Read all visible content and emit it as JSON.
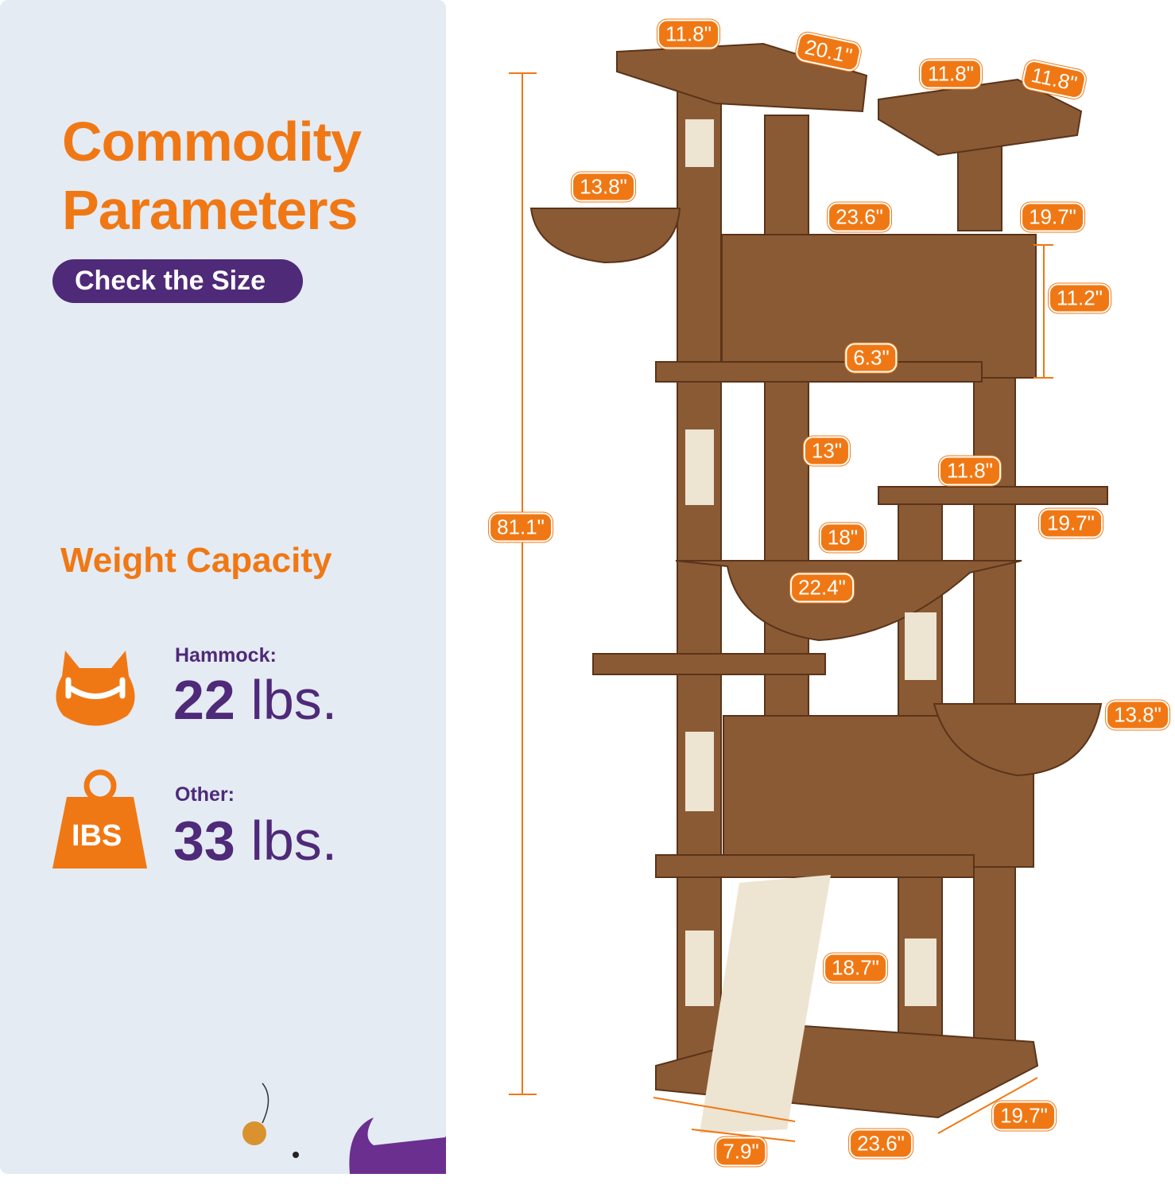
{
  "panel": {
    "title_line1": "Commodity",
    "title_line2": "Parameters",
    "subtitle_button": "Check the Size",
    "weight_heading": "Weight Capacity",
    "hammock": {
      "label": "Hammock:",
      "value": "22",
      "unit": "lbs."
    },
    "other": {
      "label": "Other:",
      "value": "33",
      "unit": "lbs."
    },
    "weight_icon_text": "IBS"
  },
  "colors": {
    "orange": "#f07814",
    "purple": "#4f2a78",
    "panel_bg": "#e4ebf3",
    "fur": "#8a5a34",
    "sisal": "#ede4d2"
  },
  "dimensions": [
    "11.8\"",
    "20.1\"",
    "11.8\"",
    "11.8\"",
    "13.8\"",
    "23.6\"",
    "19.7\"",
    "11.2\"",
    "6.3\"",
    "13\"",
    "11.8\"",
    "19.7\"",
    "81.1\"",
    "18\"",
    "22.4\"",
    "13.8\"",
    "18.7\"",
    "19.7\"",
    "23.6\"",
    "7.9\""
  ]
}
